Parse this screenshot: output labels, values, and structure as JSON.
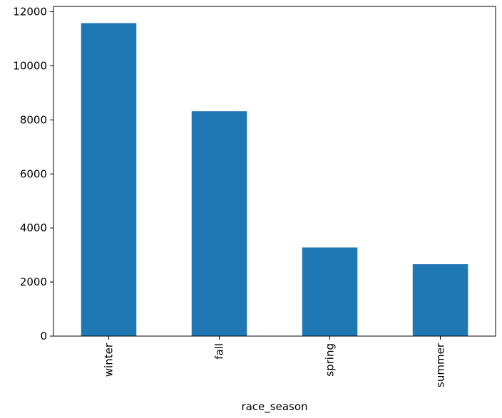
{
  "chart_data": {
    "type": "bar",
    "categories": [
      "winter",
      "fall",
      "spring",
      "summer"
    ],
    "values": [
      11580,
      8320,
      3280,
      2660
    ],
    "title": "",
    "xlabel": "race_season",
    "ylabel": "",
    "ylim": [
      0,
      12000
    ],
    "yticks": [
      0,
      2000,
      4000,
      6000,
      8000,
      10000,
      12000
    ],
    "ytick_labels": [
      "0",
      "2000",
      "4000",
      "6000",
      "8000",
      "10000",
      "12000"
    ],
    "bar_color": "#1f77b4",
    "grid": false,
    "legend": "none",
    "xtick_rotation": "vertical"
  }
}
